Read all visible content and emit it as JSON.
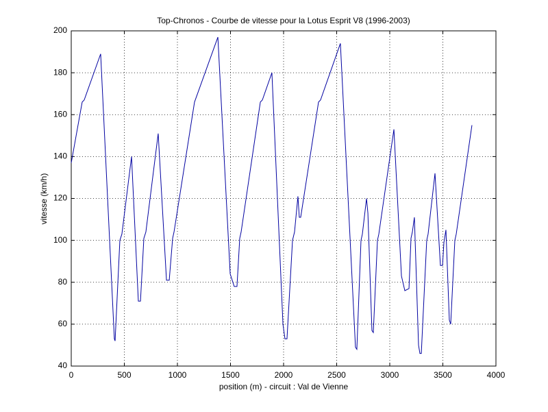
{
  "chart_data": {
    "type": "line",
    "title": "Top-Chronos - Courbe de vitesse pour la Lotus Esprit V8 (1996-2003)",
    "xlabel": "position (m) - circuit : Val de Vienne",
    "ylabel": "vitesse (km/h)",
    "x": [
      0,
      103,
      122,
      277,
      406,
      413,
      458,
      477,
      568,
      632,
      652,
      684,
      703,
      819,
      897,
      923,
      955,
      968,
      1161,
      1381,
      1497,
      1535,
      1561,
      1587,
      1600,
      1781,
      1800,
      1890,
      1994,
      2013,
      2032,
      2084,
      2103,
      2135,
      2148,
      2161,
      2329,
      2348,
      2535,
      2677,
      2690,
      2729,
      2742,
      2781,
      2794,
      2832,
      2845,
      2884,
      2897,
      3039,
      3110,
      3142,
      3181,
      3200,
      3213,
      3232,
      3271,
      3284,
      3297,
      3348,
      3361,
      3426,
      3477,
      3497,
      3510,
      3529,
      3561,
      3574,
      3613,
      3626,
      3774
    ],
    "values": [
      137,
      166,
      167,
      189,
      53,
      52,
      100,
      103,
      140,
      71,
      71,
      101,
      104,
      151,
      81,
      81,
      101,
      104,
      166,
      197,
      84,
      78,
      78,
      101,
      104,
      166,
      167,
      180,
      60,
      53,
      53,
      100,
      104,
      121,
      111,
      111,
      166,
      167,
      194,
      49,
      48,
      100,
      103,
      120,
      113,
      57,
      56,
      100,
      103,
      153,
      83,
      76,
      77,
      101,
      104,
      111,
      50,
      46,
      46,
      100,
      103,
      132,
      88,
      88,
      99,
      105,
      62,
      60,
      100,
      103,
      155
    ],
    "color": "#0000a0",
    "xlim": [
      0,
      4000
    ],
    "xticks": [
      0,
      500,
      1000,
      1500,
      2000,
      2500,
      3000,
      3500,
      4000
    ],
    "ylim": [
      40,
      200
    ],
    "yticks": [
      40,
      60,
      80,
      100,
      120,
      140,
      160,
      180,
      200
    ],
    "grid": true
  }
}
